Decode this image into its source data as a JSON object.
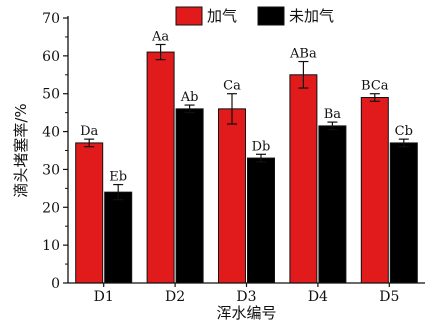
{
  "chart_data": {
    "type": "bar",
    "title": "",
    "xlabel": "浑水编号",
    "ylabel": "滴头堵塞率/%",
    "categories": [
      "D1",
      "D2",
      "D3",
      "D4",
      "D5"
    ],
    "ylim": [
      0,
      70
    ],
    "yticks": [
      0,
      10,
      20,
      30,
      40,
      50,
      60,
      70
    ],
    "legend_position": "top",
    "series": [
      {
        "name": "加气",
        "color": "#e11b1b",
        "values": [
          37,
          61,
          46,
          55,
          49
        ],
        "errors": [
          1,
          2,
          4,
          3.5,
          1
        ],
        "labels": [
          "Da",
          "Aa",
          "Ca",
          "ABa",
          "BCa"
        ]
      },
      {
        "name": "未加气",
        "color": "#000000",
        "values": [
          24,
          46,
          33,
          41.5,
          37
        ],
        "errors": [
          2,
          1,
          1,
          1,
          1
        ],
        "labels": [
          "Eb",
          "Ab",
          "Db",
          "Ba",
          "Cb"
        ]
      }
    ],
    "grid": false
  }
}
